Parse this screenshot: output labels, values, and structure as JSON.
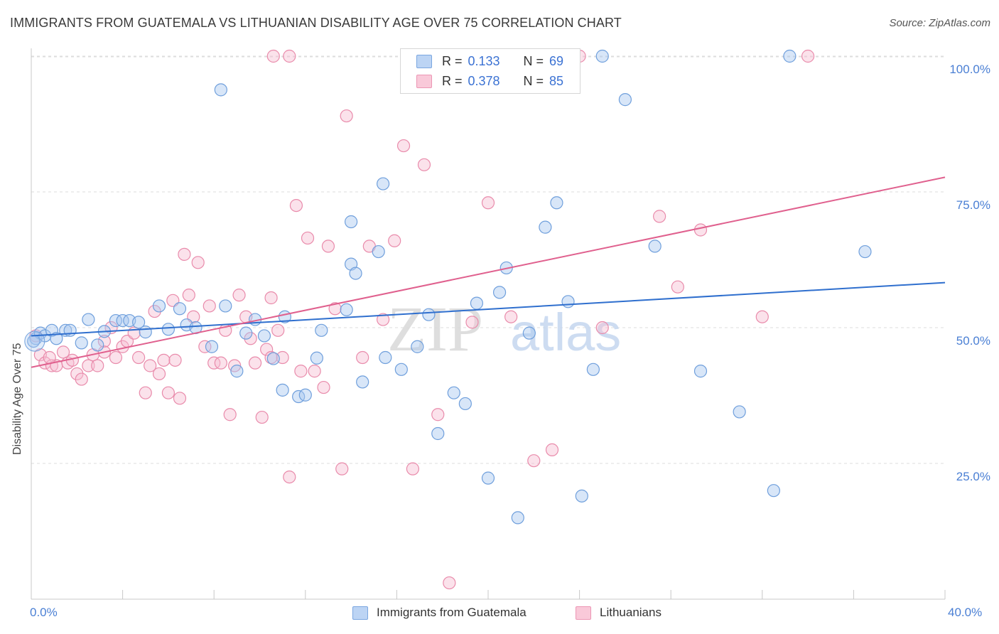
{
  "header": {
    "title": "IMMIGRANTS FROM GUATEMALA VS LITHUANIAN DISABILITY AGE OVER 75 CORRELATION CHART",
    "source": "Source: ZipAtlas.com"
  },
  "watermark": {
    "zip": "ZIP",
    "atlas": "atlas"
  },
  "colors": {
    "blue_fill": "#a9c8f0",
    "blue_stroke": "#6f9fdc",
    "blue_line": "#2f6fce",
    "pink_fill": "#f7bfd2",
    "pink_stroke": "#e98bab",
    "pink_line": "#e0608e",
    "grid": "#dcdcdc",
    "axis_text": "#4a7fd4"
  },
  "legend": {
    "r_label": "R =",
    "n_label": "N =",
    "blue": {
      "r": "0.133",
      "n": "69"
    },
    "pink": {
      "r": "0.378",
      "n": "85"
    }
  },
  "chart_data": {
    "type": "scatter",
    "xlabel": "",
    "ylabel": "Disability Age Over 75",
    "x_ticks": [
      "0.0%",
      "40.0%"
    ],
    "y_ticks": [
      "100.0%",
      "75.0%",
      "50.0%",
      "25.0%"
    ],
    "xlim": [
      0,
      40
    ],
    "ylim": [
      0,
      102
    ],
    "grid": true,
    "legend_position": "bottom-center",
    "series": [
      {
        "name": "Immigrants from Guatemala",
        "color": "blue",
        "trend": {
          "x": [
            0,
            40
          ],
          "y": [
            48.5,
            58.3
          ]
        },
        "points": [
          [
            0.2,
            48.0
          ],
          [
            0.4,
            49.0
          ],
          [
            0.6,
            48.5
          ],
          [
            0.9,
            49.5
          ],
          [
            1.1,
            48.0
          ],
          [
            1.5,
            49.5
          ],
          [
            1.7,
            49.5
          ],
          [
            2.2,
            47.2
          ],
          [
            2.5,
            51.5
          ],
          [
            2.9,
            46.8
          ],
          [
            3.2,
            49.3
          ],
          [
            3.7,
            51.3
          ],
          [
            4.0,
            51.3
          ],
          [
            4.3,
            51.3
          ],
          [
            4.7,
            51.0
          ],
          [
            5.0,
            49.2
          ],
          [
            5.6,
            54.0
          ],
          [
            6.0,
            49.7
          ],
          [
            6.5,
            53.5
          ],
          [
            6.8,
            50.5
          ],
          [
            7.2,
            50.0
          ],
          [
            7.9,
            46.5
          ],
          [
            8.5,
            54.0
          ],
          [
            9.0,
            42.0
          ],
          [
            9.8,
            51.5
          ],
          [
            9.4,
            49.0
          ],
          [
            10.2,
            48.5
          ],
          [
            10.6,
            44.3
          ],
          [
            11.0,
            38.5
          ],
          [
            11.1,
            52.0
          ],
          [
            11.7,
            37.3
          ],
          [
            12.0,
            37.6
          ],
          [
            12.5,
            44.4
          ],
          [
            12.7,
            49.5
          ],
          [
            13.8,
            53.3
          ],
          [
            14.0,
            61.7
          ],
          [
            14.2,
            60.0
          ],
          [
            14.5,
            40.0
          ],
          [
            15.2,
            64.0
          ],
          [
            15.5,
            44.5
          ],
          [
            16.2,
            42.3
          ],
          [
            16.9,
            46.5
          ],
          [
            17.4,
            52.4
          ],
          [
            17.8,
            30.5
          ],
          [
            18.5,
            38.0
          ],
          [
            19.0,
            36.0
          ],
          [
            19.5,
            54.5
          ],
          [
            20.0,
            22.3
          ],
          [
            20.8,
            61.0
          ],
          [
            21.3,
            15.0
          ],
          [
            21.8,
            49.0
          ],
          [
            22.5,
            68.5
          ],
          [
            23.0,
            73.0
          ],
          [
            23.5,
            54.8
          ],
          [
            24.1,
            19.0
          ],
          [
            24.6,
            42.3
          ],
          [
            25.0,
            100.0
          ],
          [
            26.0,
            92.0
          ],
          [
            27.3,
            65.0
          ],
          [
            29.3,
            42.0
          ],
          [
            8.3,
            93.8
          ],
          [
            14.0,
            69.5
          ],
          [
            15.4,
            76.5
          ],
          [
            20.5,
            56.5
          ],
          [
            31.0,
            34.5
          ],
          [
            32.5,
            20.0
          ],
          [
            33.2,
            100.0
          ],
          [
            36.5,
            64.0
          ],
          [
            0.1,
            47.5
          ]
        ]
      },
      {
        "name": "Lithuanians",
        "color": "pink",
        "trend": {
          "x": [
            0,
            40
          ],
          "y": [
            42.7,
            77.7
          ]
        },
        "points": [
          [
            0.2,
            48.5
          ],
          [
            0.4,
            45.0
          ],
          [
            0.6,
            43.5
          ],
          [
            0.9,
            43.0
          ],
          [
            1.1,
            43.0
          ],
          [
            1.4,
            45.5
          ],
          [
            1.6,
            43.5
          ],
          [
            1.8,
            44.0
          ],
          [
            2.0,
            41.5
          ],
          [
            2.2,
            40.5
          ],
          [
            2.5,
            43.0
          ],
          [
            2.7,
            45.0
          ],
          [
            2.9,
            43.0
          ],
          [
            3.2,
            47.5
          ],
          [
            3.5,
            50.0
          ],
          [
            3.7,
            44.5
          ],
          [
            4.0,
            46.5
          ],
          [
            4.2,
            47.5
          ],
          [
            4.5,
            49.0
          ],
          [
            4.7,
            44.5
          ],
          [
            5.0,
            38.0
          ],
          [
            5.2,
            43.0
          ],
          [
            5.4,
            53.0
          ],
          [
            5.6,
            41.5
          ],
          [
            5.8,
            44.0
          ],
          [
            6.0,
            38.0
          ],
          [
            6.3,
            44.0
          ],
          [
            6.5,
            37.0
          ],
          [
            6.7,
            63.5
          ],
          [
            6.9,
            56.0
          ],
          [
            7.1,
            52.0
          ],
          [
            7.3,
            62.0
          ],
          [
            7.6,
            46.5
          ],
          [
            7.8,
            54.0
          ],
          [
            8.0,
            43.5
          ],
          [
            8.3,
            43.5
          ],
          [
            8.5,
            49.5
          ],
          [
            8.7,
            34.0
          ],
          [
            8.9,
            43.0
          ],
          [
            9.1,
            56.0
          ],
          [
            9.4,
            52.0
          ],
          [
            9.6,
            48.0
          ],
          [
            9.8,
            43.5
          ],
          [
            10.1,
            33.5
          ],
          [
            10.3,
            46.0
          ],
          [
            10.5,
            55.5
          ],
          [
            10.8,
            49.5
          ],
          [
            11.0,
            44.5
          ],
          [
            11.3,
            22.5
          ],
          [
            11.6,
            72.5
          ],
          [
            11.8,
            42.0
          ],
          [
            12.1,
            66.5
          ],
          [
            12.4,
            42.0
          ],
          [
            12.8,
            39.0
          ],
          [
            13.0,
            65.0
          ],
          [
            13.3,
            53.5
          ],
          [
            13.6,
            24.0
          ],
          [
            13.8,
            89.0
          ],
          [
            14.5,
            44.5
          ],
          [
            14.8,
            65.0
          ],
          [
            15.4,
            51.5
          ],
          [
            15.9,
            66.0
          ],
          [
            16.3,
            83.5
          ],
          [
            16.7,
            24.0
          ],
          [
            17.2,
            80.0
          ],
          [
            17.8,
            34.0
          ],
          [
            18.3,
            3.0
          ],
          [
            19.3,
            51.0
          ],
          [
            20.0,
            73.0
          ],
          [
            21.0,
            52.0
          ],
          [
            22.0,
            25.5
          ],
          [
            22.8,
            27.5
          ],
          [
            24.0,
            100.0
          ],
          [
            25.0,
            50.0
          ],
          [
            27.5,
            70.5
          ],
          [
            28.3,
            57.5
          ],
          [
            29.3,
            68.0
          ],
          [
            32.0,
            52.0
          ],
          [
            34.0,
            100.0
          ],
          [
            10.6,
            100.0
          ],
          [
            11.3,
            100.0
          ],
          [
            10.5,
            44.5
          ],
          [
            3.2,
            45.5
          ],
          [
            0.8,
            44.5
          ],
          [
            6.2,
            55.0
          ]
        ]
      }
    ]
  }
}
